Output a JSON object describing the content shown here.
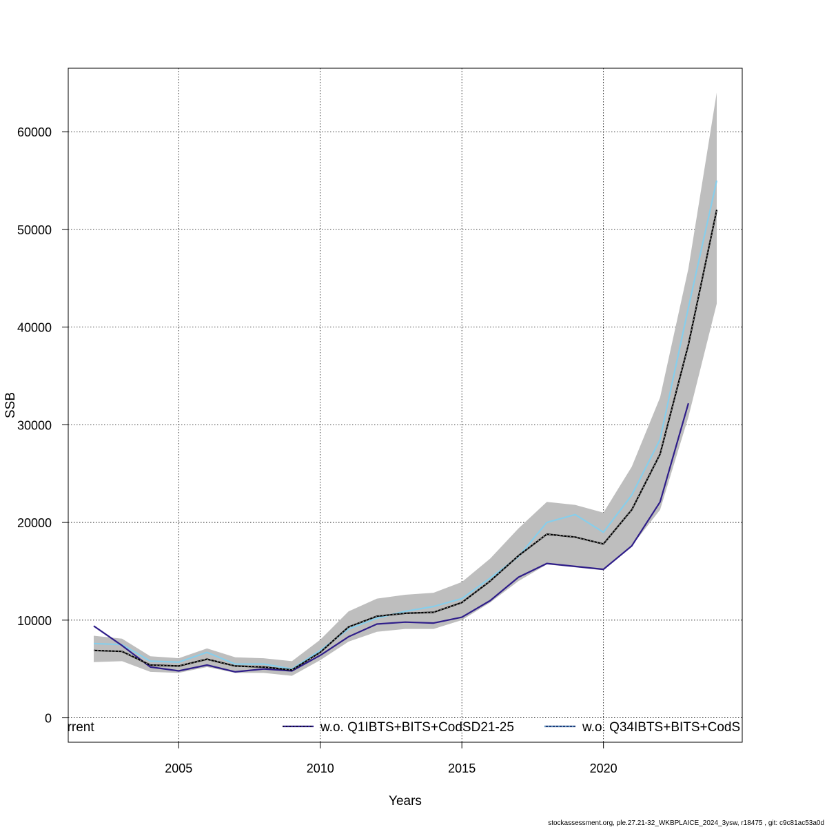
{
  "chart_data": {
    "type": "line",
    "title": "",
    "xlabel": "Years",
    "ylabel": "SSB",
    "xlim": [
      2001.1,
      2024.9
    ],
    "ylim": [
      -2500,
      66500
    ],
    "x_ticks": [
      2005,
      2010,
      2015,
      2020
    ],
    "x_tick_labels": [
      "2005",
      "2010",
      "2015",
      "2020"
    ],
    "y_ticks": [
      0,
      10000,
      20000,
      30000,
      40000,
      50000,
      60000
    ],
    "y_tick_labels": [
      "0",
      "10000",
      "20000",
      "30000",
      "40000",
      "50000",
      "60000"
    ],
    "grid": true,
    "years": [
      2002,
      2003,
      2004,
      2005,
      2006,
      2007,
      2008,
      2009,
      2010,
      2011,
      2012,
      2013,
      2014,
      2015,
      2016,
      2017,
      2018,
      2019,
      2020,
      2021,
      2022,
      2023,
      2024
    ],
    "confidence_band": {
      "color": "#bebebe",
      "lower": [
        5700,
        5800,
        4700,
        4600,
        5200,
        4600,
        4600,
        4300,
        5900,
        7800,
        8800,
        9100,
        9100,
        10000,
        11800,
        14000,
        15700,
        15400,
        15100,
        17600,
        21300,
        30800,
        42400
      ],
      "upper": [
        8400,
        8100,
        6300,
        6100,
        7100,
        6200,
        6100,
        5800,
        8000,
        10900,
        12200,
        12600,
        12800,
        13900,
        16300,
        19400,
        22100,
        21800,
        21000,
        25700,
        32800,
        46000,
        64000
      ]
    },
    "series": [
      {
        "name": "urrent",
        "color": "#000000",
        "style": "solid",
        "values": [
          6900,
          6800,
          5400,
          5300,
          6000,
          5300,
          5200,
          4900,
          6700,
          9300,
          10400,
          10700,
          10800,
          11800,
          14000,
          16600,
          18800,
          18500,
          17800,
          21300,
          27000,
          38200,
          52000
        ]
      },
      {
        "name": "w.o. Q1IBTS+BITS+CodSD21-25",
        "color": "#2f1e8a",
        "style": "solid",
        "values": [
          9400,
          7400,
          5200,
          4800,
          5400,
          4700,
          5000,
          4800,
          6400,
          8300,
          9600,
          9800,
          9700,
          10300,
          12000,
          14400,
          15800,
          15500,
          15200,
          17600,
          22100,
          32200,
          null
        ]
      },
      {
        "name": "w.o. Q34IBTS+BITS+CodS",
        "color": "#87ceeb",
        "style": "solid",
        "values": [
          7600,
          7500,
          5800,
          5700,
          6700,
          5500,
          5500,
          5000,
          6900,
          9100,
          10200,
          10900,
          11400,
          12200,
          14300,
          16500,
          20000,
          20800,
          19000,
          22800,
          28500,
          42000,
          55000
        ]
      }
    ],
    "legend": {
      "placement": "bottom",
      "entries": [
        "urrent",
        "w.o. Q1IBTS+BITS+CodSD21-25",
        "w.o. Q34IBTS+BITS+CodS"
      ]
    }
  },
  "footer": "stockassessment.org, ple.27.21-32_WKBPLAICE_2024_3ysw, r18475 , git: c9c81ac53a0d"
}
